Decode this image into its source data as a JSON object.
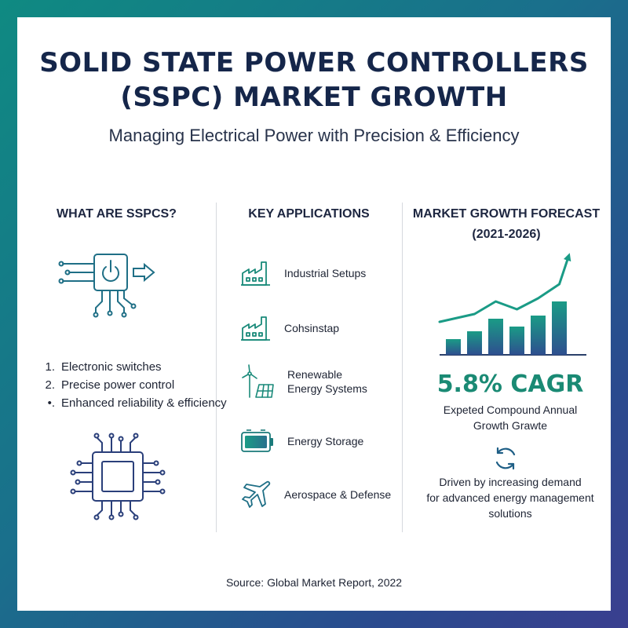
{
  "header": {
    "title_line1": "SOLID STATE POWER CONTROLLERS",
    "title_line2": "(SSPC) MARKET GROWTH",
    "subtitle": "Managing Electrical Power with Precision & Efficiency"
  },
  "what": {
    "heading": "WHAT ARE SSPCS?",
    "features": [
      {
        "marker": "1.",
        "text": "Electronic switches"
      },
      {
        "marker": "2.",
        "text": "Precise power control"
      },
      {
        "marker": "•.",
        "text": "Enhanced reliability & efficiency"
      }
    ],
    "icons": [
      "power-switch-circuit-icon",
      "microchip-icon"
    ]
  },
  "applications": {
    "heading": "KEY APPLICATIONS",
    "items": [
      {
        "line1": "Industrial Setups",
        "line2": "",
        "icon": "factory-icon"
      },
      {
        "line1": "Cohsinstap",
        "line2": "",
        "icon": "factory-icon"
      },
      {
        "line1": "Renewable",
        "line2": "Energy Systems",
        "icon": "wind-solar-icon"
      },
      {
        "line1": "Energy Storage",
        "line2": "",
        "icon": "battery-icon"
      },
      {
        "line1": "Aerospace & Defense",
        "line2": "",
        "icon": "airplane-icon"
      }
    ]
  },
  "forecast": {
    "heading_line1": "MARKET GROWTH FORECAST",
    "heading_line2": "(2021-2026)",
    "cagr": "5.8% CAGR",
    "cagr_label_line1": "Expeted Compound Annual",
    "cagr_label_line2": "Growth Grawte",
    "driver_line1": "Driven by increasing demand",
    "driver_line2": "for advanced energy management",
    "driver_line3": "solutions",
    "icon": "cycle-arrows-icon"
  },
  "chart_data": {
    "type": "bar",
    "values": [
      1,
      1.5,
      2.3,
      1.8,
      2.5,
      3.4
    ],
    "trend": "up-arrow",
    "colors": {
      "bar_top": "#1a9b86",
      "bar_bottom": "#2e4f8f",
      "trend_line": "#1a9b86"
    }
  },
  "footer": {
    "source": "Source: Global Market Report, 2022"
  },
  "colors": {
    "accent": "#1a9b86",
    "title": "#15264a",
    "background_start": "#0f8a82",
    "background_end": "#3a3f8f"
  }
}
